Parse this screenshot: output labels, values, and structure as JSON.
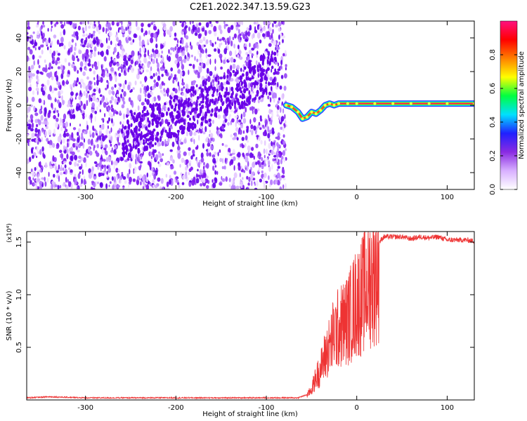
{
  "title": "C2E1.2022.347.13.59.G23",
  "chart_data": [
    {
      "type": "heatmap",
      "xlabel": "Height of straight line (km)",
      "ylabel": "Frequency (Hz)",
      "xlim": [
        -365,
        130
      ],
      "ylim": [
        -50,
        50
      ],
      "xticks": [
        -300,
        -200,
        -100,
        0,
        100
      ],
      "yticks": [
        -40,
        -20,
        0,
        20,
        40
      ],
      "noise_region_x": [
        -365,
        -78
      ],
      "signal_track": {
        "x": [
          -78,
          -72,
          -65,
          -60,
          -55,
          -50,
          -45,
          -40,
          -35,
          -30,
          -25,
          -20,
          -10,
          0,
          20,
          40,
          60,
          80,
          100,
          130
        ],
        "y": [
          0,
          -1,
          -4,
          -8,
          -7,
          -4,
          -5,
          -3,
          0,
          1,
          0,
          1,
          1,
          1,
          1,
          1,
          1,
          1,
          1,
          1
        ]
      },
      "colorbar": {
        "label": "Normalized spectral amplitude",
        "range": [
          0,
          1
        ],
        "ticks": [
          "0.0",
          "0.2",
          "0.4",
          "0.6",
          "0.8"
        ],
        "colors": [
          "#ffffff",
          "#d8b0ff",
          "#8a2be2",
          "#2020ff",
          "#00e0ff",
          "#00ff40",
          "#ffff00",
          "#ff8000",
          "#ff0000",
          "#ff1080"
        ]
      }
    },
    {
      "type": "line",
      "xlabel": "Height of straight line (km)",
      "ylabel": "SNR (10 * v/v)",
      "scale_note": "(x10⁴)",
      "xlim": [
        -365,
        130
      ],
      "ylim": [
        0,
        1.6
      ],
      "xticks": [
        -300,
        -200,
        -100,
        0,
        100
      ],
      "yticks": [
        "0.5",
        "1.0",
        "1.5"
      ],
      "color": "#ee3333",
      "series": [
        {
          "x": [
            -365,
            -340,
            -300,
            -250,
            -200,
            -150,
            -100,
            -65,
            -55,
            -50,
            -45,
            -40,
            -35,
            -30,
            -25,
            -20,
            -15,
            -10,
            -5,
            0,
            5,
            10,
            15,
            20,
            25,
            30,
            40,
            50,
            60,
            70,
            80,
            90,
            100,
            110,
            120,
            130
          ],
          "values": [
            0.02,
            0.03,
            0.02,
            0.02,
            0.02,
            0.02,
            0.02,
            0.02,
            0.05,
            0.12,
            0.25,
            0.35,
            0.5,
            0.6,
            0.75,
            0.8,
            0.85,
            0.9,
            1.0,
            1.1,
            1.15,
            1.25,
            1.35,
            1.42,
            1.5,
            1.55,
            1.55,
            1.55,
            1.53,
            1.55,
            1.54,
            1.55,
            1.52,
            1.52,
            1.52,
            1.51
          ]
        }
      ]
    }
  ]
}
